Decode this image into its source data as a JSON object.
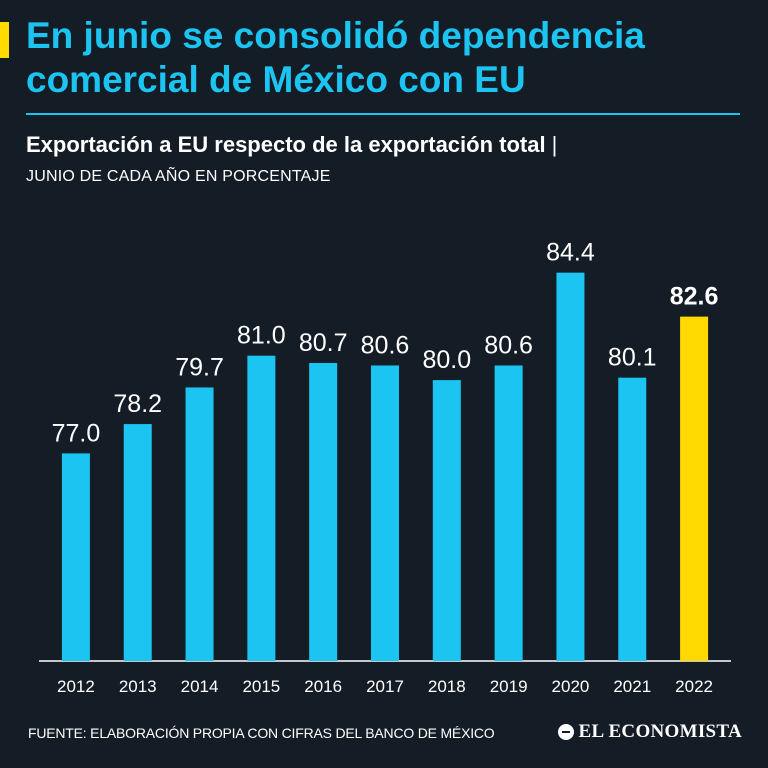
{
  "header": {
    "title": "En junio se consolidó dependencia comercial de México con EU",
    "subtitle": "Exportación a EU respecto de la exportación total",
    "subtitle_separator": "|",
    "unit_note": "JUNIO DE CADA AÑO EN PORCENTAJE"
  },
  "footer": {
    "source": "FUENTE: ELABORACIÓN PROPIA CON CIFRAS DEL BANCO DE MÉXICO",
    "logo_text": "EL ECONOMISTA"
  },
  "colors": {
    "background": "#141c26",
    "bar": "#1cc4f2",
    "highlight_bar": "#ffd900",
    "accent": "#ffd900",
    "text": "#ffffff"
  },
  "chart_data": {
    "type": "bar",
    "title": "Exportación a EU respecto de la exportación total",
    "subtitle": "JUNIO DE CADA AÑO EN PORCENTAJE",
    "xlabel": "",
    "ylabel": "",
    "categories": [
      "2012",
      "2013",
      "2014",
      "2015",
      "2016",
      "2017",
      "2018",
      "2019",
      "2020",
      "2021",
      "2022"
    ],
    "values": [
      77.0,
      78.2,
      79.7,
      81.0,
      80.7,
      80.6,
      80.0,
      80.6,
      84.4,
      80.1,
      82.6
    ],
    "value_labels": [
      "77.0",
      "78.2",
      "79.7",
      "81.0",
      "80.7",
      "80.6",
      "80.0",
      "80.6",
      "84.4",
      "80.1",
      "82.6"
    ],
    "highlight_index": 10,
    "ylim": [
      68.5,
      85
    ],
    "grid": false,
    "legend": "none"
  }
}
